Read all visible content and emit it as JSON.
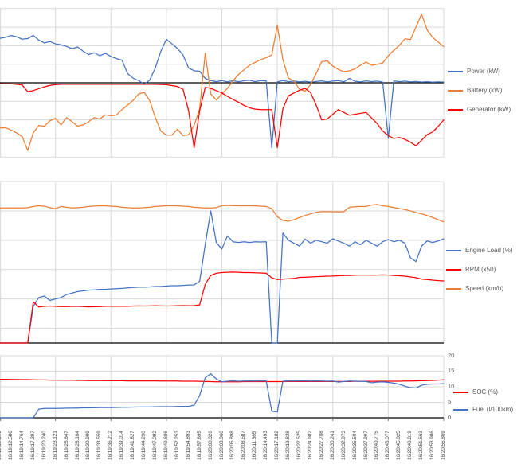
{
  "chart_data": {
    "type": "line",
    "categories": [
      "16:19:10.193",
      "16:19:12.586",
      "16:19:14.764",
      "16:19:17.397",
      "16:19:20.240",
      "16:19:23.121",
      "16:19:25.647",
      "16:19:28.164",
      "16:19:30.999",
      "16:19:33.559",
      "16:19:36.212",
      "16:19:39.014",
      "16:19:41.827",
      "16:19:44.290",
      "16:19:47.092",
      "16:19:49.686",
      "16:19:52.253",
      "16:19:54.893",
      "16:19:57.695",
      "16:20:00.326",
      "16:20:03.060",
      "16:20:05.898",
      "16:20:08.587",
      "16:20:11.665",
      "16:20:14.493",
      "16:20:17.182",
      "16:20:19.838",
      "16:20:22.525",
      "16:20:24.982",
      "16:20:27.708",
      "16:20:30.241",
      "16:20:32.873",
      "16:20:35.504",
      "16:20:37.997",
      "16:20:40.775",
      "16:20:43.077",
      "16:20:45.825",
      "16:20:48.819",
      "16:20:51.563",
      "16:20:53.986",
      "16:20:56.869"
    ],
    "charts": [
      {
        "id": "power_flow",
        "ylim": [
          -40,
          40
        ],
        "grid_step": 10,
        "series": [
          {
            "name": "Power (kW)",
            "color": "#4472C4",
            "values": [
              24,
              24.5,
              25.5,
              24.8,
              23.5,
              23.8,
              25.6,
              23,
              21.5,
              22.2,
              21,
              20.5,
              19.6,
              18.4,
              19.3,
              17,
              15.2,
              16.2,
              14.6,
              15.9,
              14.2,
              13,
              12.2,
              5,
              2.5,
              1.2,
              -0.8,
              1.5,
              8,
              17,
              23.5,
              21,
              18.5,
              15,
              8,
              6.5,
              6.2,
              2.3,
              1.2,
              0.6,
              1.2,
              0.5,
              1.1,
              0.6,
              1.1,
              1.4,
              0.6,
              1.2,
              1,
              -35,
              0.5,
              1.2,
              0.6,
              0.9,
              0.5,
              0.8,
              0.4,
              0.7,
              1,
              0.5,
              0.9,
              1.2,
              0.5,
              2.4,
              0.8,
              0.5,
              1,
              0.6,
              0.9,
              0.4,
              -30,
              1,
              0.6,
              0.9,
              0.5,
              0.7,
              0.4,
              0.6,
              0.3,
              0.5,
              0.4
            ]
          },
          {
            "name": "Battery (kW)",
            "color": "#ED7D31",
            "values": [
              -24.4,
              -24.2,
              -25.5,
              -27,
              -29,
              -36.5,
              -27,
              -23,
              -23.4,
              -20.5,
              -19.2,
              -22.7,
              -18.8,
              -21,
              -23.4,
              -22.7,
              -21,
              -18.8,
              -19.5,
              -17.3,
              -17.8,
              -17.3,
              -14.5,
              -12,
              -9.5,
              -6,
              -5.2,
              -9.6,
              -18.8,
              -26,
              -28.2,
              -28.2,
              -25,
              -28.5,
              -28,
              -23,
              -14,
              16,
              -6,
              -9.3,
              -6,
              -3,
              1,
              4.5,
              7,
              9.5,
              11,
              12.5,
              13.5,
              15,
              31,
              12.5,
              2.5,
              1,
              -3.5,
              -4.5,
              -1,
              5,
              11.4,
              11.8,
              9,
              7.2,
              6,
              6.5,
              7.5,
              9.5,
              11.2,
              9.4,
              10,
              10.7,
              14.5,
              17.5,
              20.2,
              23.7,
              23.3,
              30,
              37,
              28.5,
              24.5,
              22,
              19.5
            ]
          },
          {
            "name": "Generator (kW)",
            "color": "#FF0000",
            "values": [
              -0.5,
              -0.6,
              -0.6,
              -0.8,
              -1.2,
              -4.8,
              -4.2,
              -3.2,
              -2.2,
              -1.4,
              -1,
              -0.8,
              -0.8,
              -0.8,
              -0.8,
              -0.8,
              -0.8,
              -0.8,
              -0.8,
              -0.8,
              -0.8,
              -0.8,
              -0.8,
              -0.8,
              -0.8,
              -0.8,
              -0.8,
              -0.8,
              -0.8,
              -0.9,
              -1,
              -1.5,
              -2,
              -3.5,
              -15,
              -35,
              -15,
              -2.5,
              -3,
              -4.2,
              -5.5,
              -7.3,
              -9,
              -10.5,
              -12.2,
              -13.5,
              -14.2,
              -14.5,
              -14.5,
              -14.5,
              -35,
              -14,
              -7,
              -5.5,
              -4,
              -3,
              -5.3,
              -12,
              -20,
              -19.5,
              -17,
              -14.5,
              -16,
              -17.5,
              -17,
              -16.5,
              -16,
              -19,
              -22,
              -26,
              -28.5,
              -30,
              -29.5,
              -30.5,
              -32,
              -34,
              -31,
              -28,
              -26.5,
              -23.5,
              -20
            ]
          }
        ]
      },
      {
        "id": "drivetrain",
        "ylim": [
          0,
          110
        ],
        "gridlines": [
          10,
          30,
          50,
          70,
          90,
          110
        ],
        "series": [
          {
            "name": "Engine Load (%)",
            "color": "#4472C4",
            "values": [
              0,
              0,
              0,
              0,
              0,
              0,
              25,
              31,
              32,
              29,
              30,
              31,
              33,
              34,
              35,
              35.5,
              36,
              36.2,
              36.5,
              36.5,
              36.8,
              37,
              37.2,
              37.5,
              37.8,
              38,
              38,
              38.2,
              38.5,
              38.5,
              38.8,
              39,
              39,
              39.2,
              39.5,
              39.6,
              42,
              67,
              90,
              68.5,
              64,
              73,
              69,
              68.5,
              69,
              68.5,
              69,
              68.8,
              69,
              0,
              0,
              75,
              70,
              68,
              66,
              70.8,
              68,
              70,
              69,
              68,
              71,
              69.5,
              68,
              66,
              69,
              67,
              70,
              68,
              66,
              69,
              70.5,
              69,
              70,
              68,
              58,
              55.5,
              66,
              69.5,
              68.5,
              69.5,
              71
            ]
          },
          {
            "name": "RPM (x50)",
            "color": "#FF0000",
            "values": [
              0,
              0,
              0,
              0,
              0,
              0,
              28,
              24.5,
              25,
              25.2,
              25,
              24.8,
              24.8,
              24.9,
              25,
              24.8,
              24.6,
              24.7,
              24.8,
              25,
              25,
              25.1,
              25,
              25,
              25.2,
              25.3,
              25.2,
              25.3,
              25.4,
              25.3,
              25.2,
              25.3,
              25.4,
              25.5,
              25.4,
              25.5,
              26,
              40,
              46,
              47.5,
              48,
              48.2,
              48.3,
              48.2,
              48,
              48,
              47.8,
              47.7,
              47.5,
              44.4,
              43.2,
              43.5,
              43.8,
              44,
              44.7,
              44.8,
              45,
              45.2,
              45.3,
              45.5,
              45.6,
              45.8,
              46,
              46,
              46.2,
              46.3,
              46.3,
              46.2,
              46.3,
              46.4,
              46.3,
              46,
              45.8,
              45.5,
              45,
              44.5,
              43.5,
              43.2,
              42.8,
              42.5,
              42.3
            ]
          },
          {
            "name": "Speed (km/h)",
            "color": "#ED7D31",
            "values": [
              92,
              92,
              92,
              92,
              92,
              92.2,
              93,
              93.5,
              93.2,
              92.2,
              91.5,
              93,
              92.5,
              92,
              92.2,
              92.5,
              93,
              93.3,
              93.5,
              93.4,
              93.2,
              93,
              92.5,
              92.2,
              92,
              92,
              92.2,
              92.5,
              93,
              93.3,
              93.5,
              93.5,
              93.4,
              93.2,
              93,
              92.5,
              92.2,
              92,
              92,
              92.3,
              93.5,
              93.8,
              93.6,
              93.5,
              93.5,
              93.5,
              93.4,
              93.2,
              93,
              91.5,
              86,
              83.5,
              83,
              84,
              85.5,
              86.9,
              88,
              89,
              89.5,
              89.5,
              89.4,
              89.3,
              89.5,
              92.5,
              92.8,
              93,
              93,
              94,
              94.4,
              93.5,
              93,
              92.3,
              91.6,
              90.9,
              90,
              88.9,
              88,
              86.9,
              85.5,
              84,
              82.5
            ]
          }
        ]
      },
      {
        "id": "soc_fuel",
        "ylim": [
          0,
          20
        ],
        "grid_step": 5,
        "right_axis_ticks": [
          "0",
          "5",
          "10",
          "15",
          "20"
        ],
        "series": [
          {
            "name": "SOC (%)",
            "color": "#FF0000",
            "values": [
              12.4,
              12.4,
              12.35,
              12.35,
              12.3,
              12.3,
              12.25,
              12.2,
              12.2,
              12.15,
              12.15,
              12.1,
              12.1,
              12.1,
              12.05,
              12.05,
              12,
              12,
              12,
              12,
              11.95,
              11.95,
              11.95,
              11.9,
              11.9,
              11.9,
              11.9,
              11.9,
              11.9,
              11.85,
              11.85,
              11.85,
              11.85,
              11.8,
              11.8,
              11.8,
              11.75,
              11.7,
              11.65,
              11.6,
              11.6,
              11.6,
              11.6,
              11.6,
              11.65,
              11.65,
              11.65,
              11.65,
              11.65,
              11.65,
              11.65,
              11.65,
              11.7,
              11.7,
              11.7,
              11.7,
              11.7,
              11.7,
              11.7,
              11.7,
              11.7,
              11.7,
              11.7,
              11.7,
              11.75,
              11.75,
              11.75,
              11.75,
              11.75,
              11.8,
              11.8,
              11.8,
              11.8,
              11.85,
              11.85,
              11.9,
              11.95,
              12,
              12.05,
              12.15,
              12.25
            ]
          },
          {
            "name": "Fuel (l/100km)",
            "color": "#4472C4",
            "values": [
              0,
              0,
              0,
              0,
              0,
              0,
              0,
              2.8,
              3,
              3,
              3,
              3.05,
              3.1,
              3.1,
              3.15,
              3.2,
              3.2,
              3.25,
              3.3,
              3.3,
              3.3,
              3.35,
              3.4,
              3.4,
              3.45,
              3.5,
              3.5,
              3.5,
              3.55,
              3.6,
              3.6,
              3.6,
              3.65,
              3.7,
              3.7,
              4.1,
              7.2,
              12.9,
              14.2,
              12.5,
              11.6,
              11.8,
              11.9,
              11.8,
              11.85,
              11.9,
              11.85,
              11.9,
              11.9,
              2.1,
              1.9,
              11.8,
              11.9,
              11.85,
              11.9,
              11.9,
              11.85,
              11.9,
              11.85,
              11.8,
              11.85,
              11.5,
              11.7,
              11.85,
              11.8,
              11.75,
              11.7,
              11.3,
              11.5,
              11.6,
              11.4,
              11.2,
              10.8,
              10.2,
              9.7,
              9.6,
              10.5,
              10.8,
              10.9,
              10.9,
              11
            ]
          }
        ]
      }
    ],
    "colors": {
      "grid": "#D9D9D9",
      "axis": "#000000",
      "legend_text": "#595959",
      "right_axis_text": "#595959",
      "x_label_text": "#404040"
    }
  }
}
